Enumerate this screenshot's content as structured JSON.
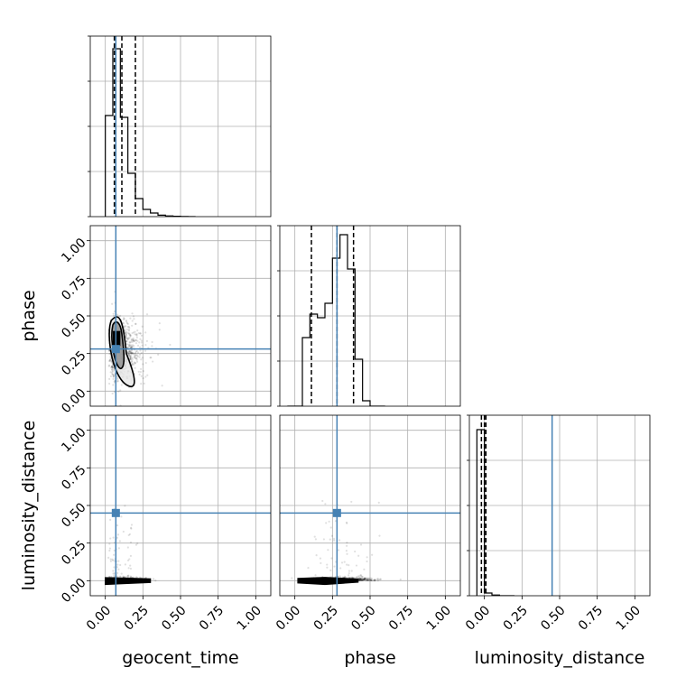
{
  "chart_data": {
    "type": "corner",
    "parameters": [
      "geocent_time",
      "phase",
      "luminosity_distance"
    ],
    "axis_labels": {
      "x": [
        "geocent_time",
        "phase",
        "luminosity_distance"
      ],
      "y": [
        "",
        "phase",
        "luminosity_distance"
      ]
    },
    "range": [
      -0.1,
      1.1
    ],
    "ticks": [
      0.0,
      0.25,
      0.5,
      0.75,
      1.0
    ],
    "tick_labels": [
      "0.00",
      "0.25",
      "0.50",
      "0.75",
      "1.00"
    ],
    "truths": {
      "geocent_time": 0.07,
      "phase": 0.28,
      "luminosity_distance": 0.45
    },
    "grid": true,
    "truth_color": "#4682b4",
    "histograms": {
      "geocent_time": {
        "bin_edges": [
          0.0,
          0.05,
          0.1,
          0.15,
          0.2,
          0.25,
          0.3,
          0.35,
          0.4,
          0.45,
          0.5,
          0.55,
          0.6
        ],
        "counts": [
          0.56,
          0.93,
          0.55,
          0.24,
          0.1,
          0.04,
          0.02,
          0.008,
          0.004,
          0.002,
          0.001,
          0.0
        ],
        "quantiles": [
          0.06,
          0.11,
          0.2
        ]
      },
      "phase": {
        "bin_edges": [
          -0.05,
          0.0,
          0.05,
          0.1,
          0.15,
          0.2,
          0.25,
          0.3,
          0.35,
          0.4,
          0.45,
          0.5,
          0.55,
          0.6
        ],
        "counts": [
          0.0,
          0.0,
          0.38,
          0.51,
          0.49,
          0.57,
          0.82,
          0.95,
          0.76,
          0.26,
          0.03,
          0.0,
          0.0
        ],
        "quantiles": [
          0.11,
          0.28,
          0.39
        ]
      },
      "luminosity_distance": {
        "bin_edges": [
          -0.05,
          0.0,
          0.05,
          0.1,
          0.15,
          0.2
        ],
        "counts": [
          0.92,
          0.015,
          0.004,
          0.0,
          0.0
        ],
        "quantiles": [
          -0.02,
          0.0,
          0.01
        ]
      }
    }
  }
}
